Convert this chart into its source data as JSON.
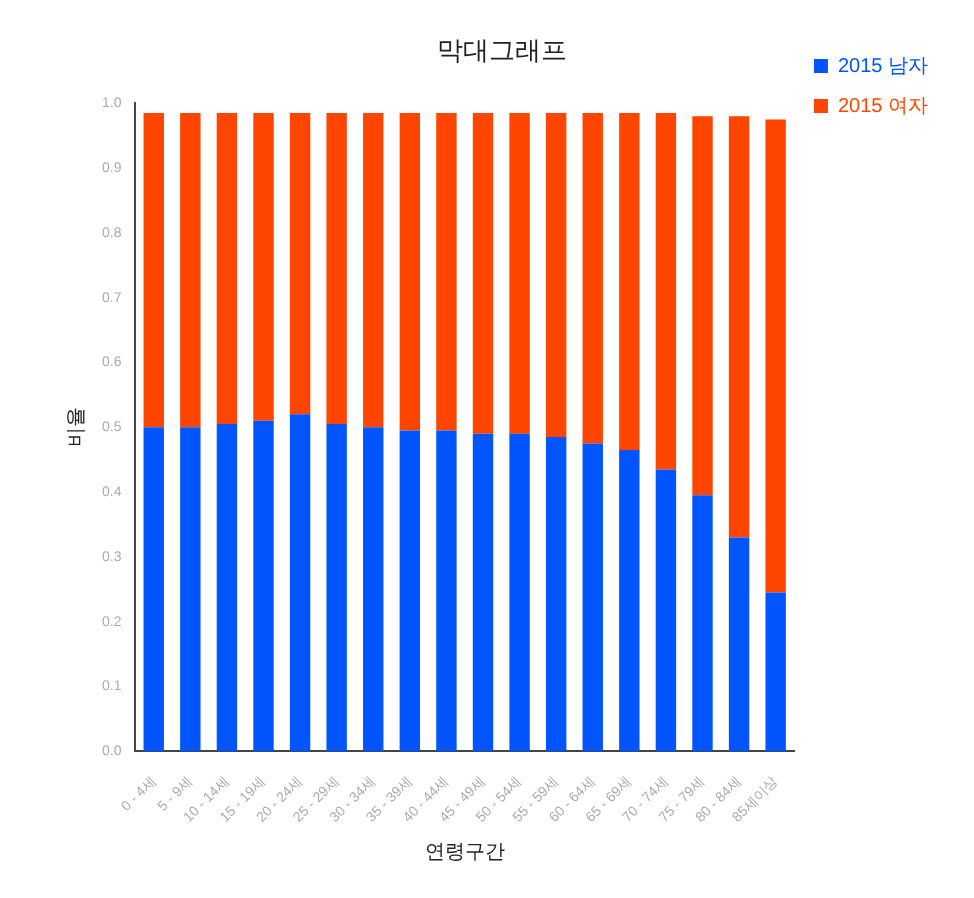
{
  "chart_data": {
    "type": "bar",
    "title": "막대그래프",
    "xlabel": "연령구간",
    "ylabel": "비율",
    "stacked": true,
    "legend": "top right",
    "grid": false,
    "categories": [
      "0 - 4세",
      "5 - 9세",
      "10 - 14세",
      "15 - 19세",
      "20 - 24세",
      "25 - 29세",
      "30 - 34세",
      "35 - 39세",
      "40 - 44세",
      "45 - 49세",
      "50 - 54세",
      "55 - 59세",
      "60 - 64세",
      "65 - 69세",
      "70 - 74세",
      "75 - 79세",
      "80 - 84세",
      "85세이상"
    ],
    "series": [
      {
        "name": "2015 남자",
        "color": "#0055ff",
        "values": [
          0.5,
          0.5,
          0.505,
          0.51,
          0.52,
          0.505,
          0.5,
          0.495,
          0.495,
          0.49,
          0.49,
          0.485,
          0.475,
          0.465,
          0.435,
          0.395,
          0.33,
          0.245
        ]
      },
      {
        "name": "2015 여자",
        "color": "#ff4500",
        "values": [
          0.485,
          0.485,
          0.48,
          0.475,
          0.465,
          0.48,
          0.485,
          0.49,
          0.49,
          0.495,
          0.495,
          0.5,
          0.51,
          0.52,
          0.55,
          0.585,
          0.65,
          0.73
        ]
      }
    ],
    "ylim": [
      0,
      1
    ],
    "yticks": [
      {
        "value": 0,
        "label": "0.0"
      },
      {
        "value": 0.1,
        "label": "0.1"
      },
      {
        "value": 0.2,
        "label": "0.2"
      },
      {
        "value": 0.3,
        "label": "0.3"
      },
      {
        "value": 0.4,
        "label": "0.4"
      },
      {
        "value": 0.5,
        "label": "0.5"
      },
      {
        "value": 0.6,
        "label": "0.6"
      },
      {
        "value": 0.7,
        "label": "0.7"
      },
      {
        "value": 0.8,
        "label": "0.8"
      },
      {
        "value": 0.9,
        "label": "0.9"
      },
      {
        "value": 1,
        "label": "1.0"
      }
    ]
  }
}
